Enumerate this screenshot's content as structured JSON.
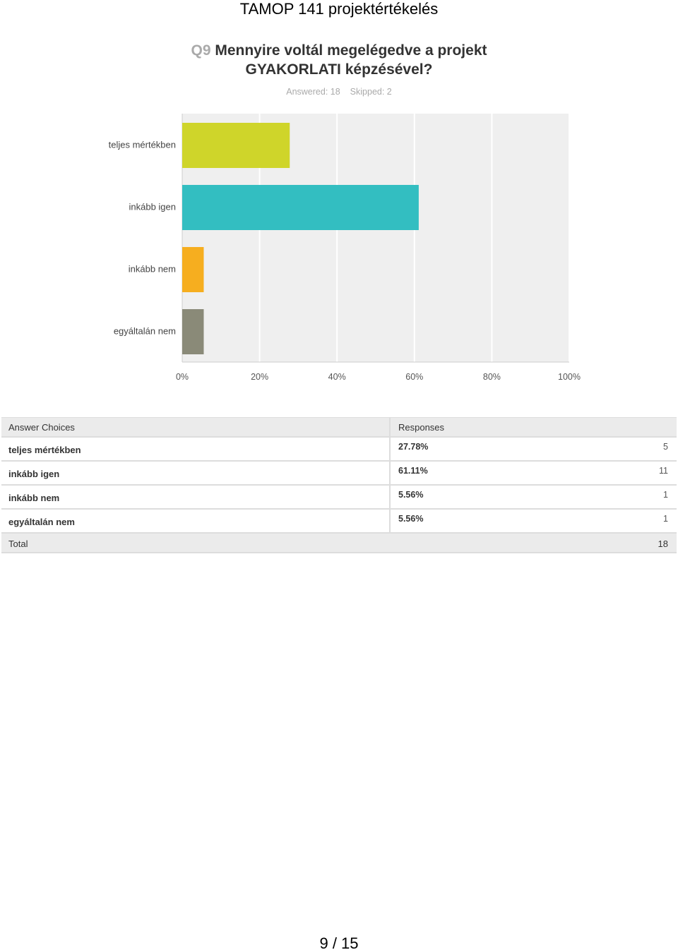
{
  "header": {
    "title": "TAMOP 141 projektértékelés"
  },
  "question": {
    "number": "Q9",
    "text": "Mennyire voltál megelégedve a projekt GYAKORLATI képzésével?",
    "answered": "Answered: 18",
    "skipped": "Skipped: 2"
  },
  "chart_data": {
    "type": "bar",
    "orientation": "horizontal",
    "categories": [
      "teljes mértékben",
      "inkább igen",
      "inkább nem",
      "egyáltalán nem"
    ],
    "values": [
      27.78,
      61.11,
      5.56,
      5.56
    ],
    "colors": [
      "#cfd52a",
      "#33bec1",
      "#f6ae1f",
      "#8a8a78"
    ],
    "xlim": [
      0,
      100
    ],
    "xticks": [
      {
        "value": 0,
        "label": "0%"
      },
      {
        "value": 20,
        "label": "20%"
      },
      {
        "value": 40,
        "label": "40%"
      },
      {
        "value": 60,
        "label": "60%"
      },
      {
        "value": 80,
        "label": "80%"
      },
      {
        "value": 100,
        "label": "100%"
      }
    ],
    "grid": true
  },
  "table": {
    "headers": [
      "Answer Choices",
      "Responses"
    ],
    "rows": [
      [
        "teljes mértékben",
        "27.78%",
        5
      ],
      [
        "inkább igen",
        "61.11%",
        11
      ],
      [
        "inkább nem",
        "5.56%",
        1
      ],
      [
        "egyáltalán nem",
        "5.56%",
        1
      ]
    ],
    "total": {
      "label": "Total",
      "value": 18
    }
  },
  "footer": {
    "page": "9 / 15"
  }
}
